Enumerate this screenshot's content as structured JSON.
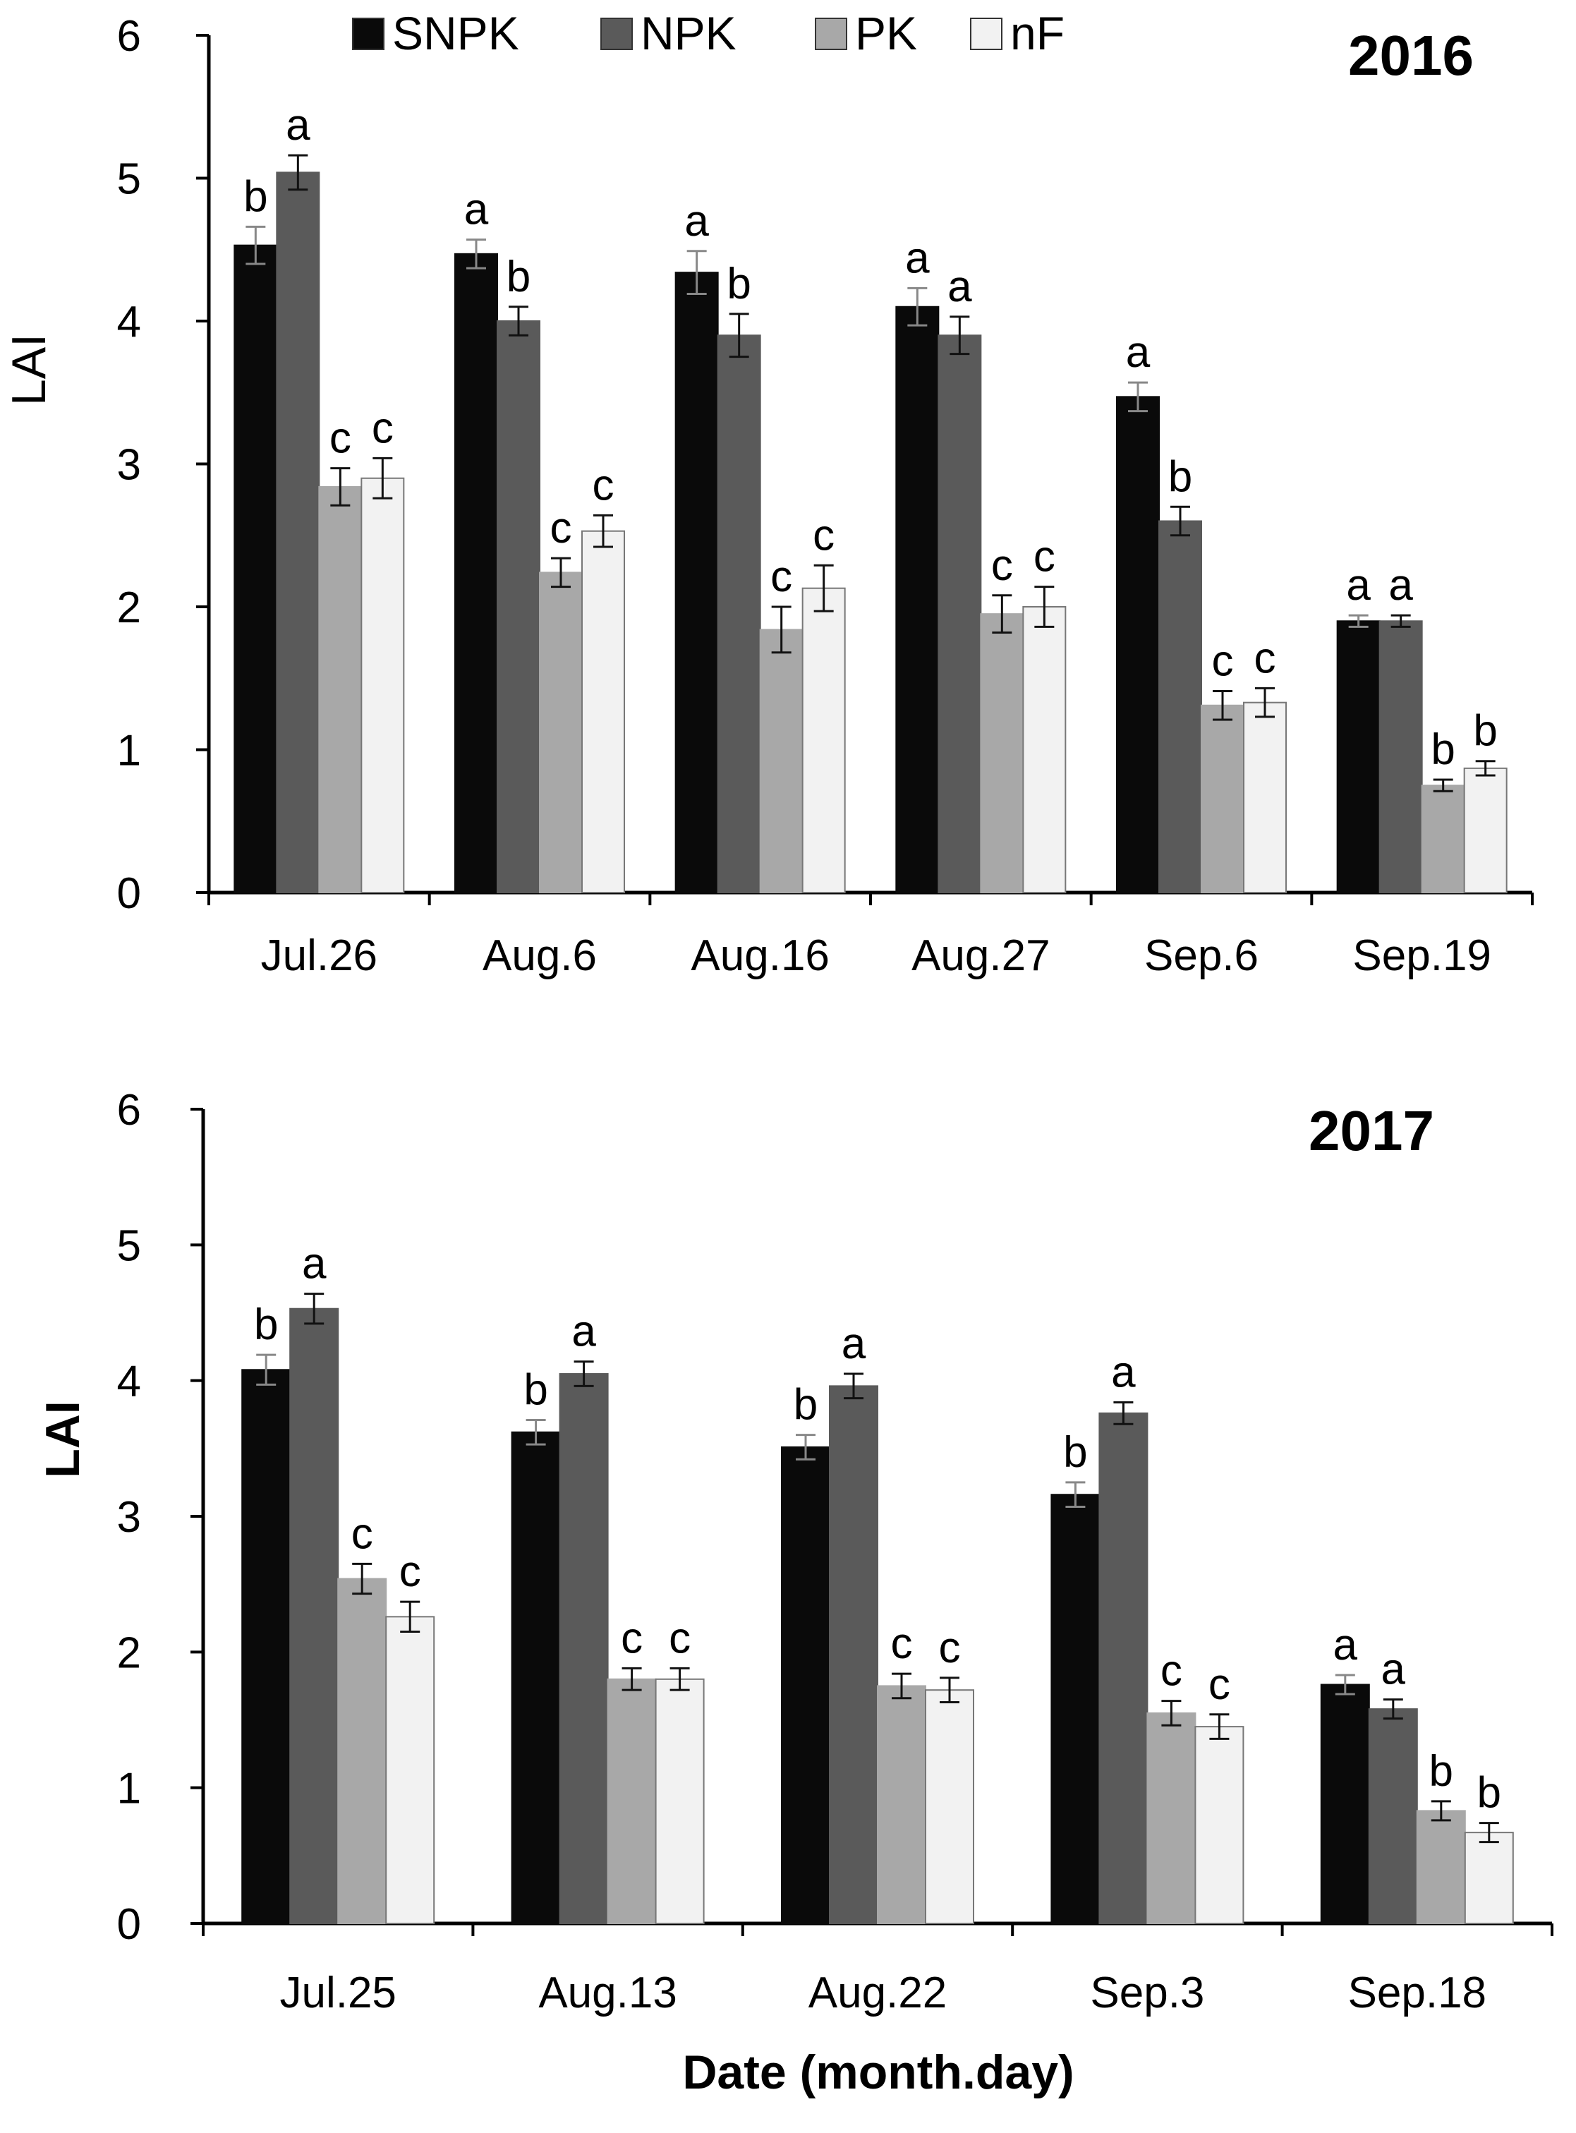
{
  "legend": [
    {
      "name": "SNPK",
      "color": "#0a0a0a"
    },
    {
      "name": "NPK",
      "color": "#5a5a5a"
    },
    {
      "name": "PK",
      "color": "#a8a8a8"
    },
    {
      "name": "nF",
      "color": "#f2f2f2"
    }
  ],
  "x_axis_title": "Date (month.day)",
  "chart_data": [
    {
      "type": "bar",
      "title": "2016",
      "ylabel": "LAI",
      "ylim": [
        0,
        6
      ],
      "yticks": [
        0,
        1,
        2,
        3,
        4,
        5,
        6
      ],
      "categories": [
        "Jul.26",
        "Aug.6",
        "Aug.16",
        "Aug.27",
        "Sep.6",
        "Sep.19"
      ],
      "series": [
        {
          "name": "SNPK",
          "values": [
            4.53,
            4.47,
            4.34,
            4.1,
            3.47,
            1.9
          ],
          "errors": [
            0.13,
            0.1,
            0.15,
            0.13,
            0.1,
            0.04
          ],
          "labels": [
            "b",
            "a",
            "a",
            "a",
            "a",
            "a"
          ]
        },
        {
          "name": "NPK",
          "values": [
            5.04,
            4.0,
            3.9,
            3.9,
            2.6,
            1.9
          ],
          "errors": [
            0.12,
            0.1,
            0.15,
            0.13,
            0.1,
            0.04
          ],
          "labels": [
            "a",
            "b",
            "b",
            "a",
            "b",
            "a"
          ]
        },
        {
          "name": "PK",
          "values": [
            2.84,
            2.24,
            1.84,
            1.95,
            1.31,
            0.75
          ],
          "errors": [
            0.13,
            0.1,
            0.16,
            0.13,
            0.1,
            0.04
          ],
          "labels": [
            "c",
            "c",
            "c",
            "c",
            "c",
            "b"
          ]
        },
        {
          "name": "nF",
          "values": [
            2.9,
            2.53,
            2.13,
            2.0,
            1.33,
            0.87
          ],
          "errors": [
            0.14,
            0.11,
            0.16,
            0.14,
            0.1,
            0.05
          ],
          "labels": [
            "c",
            "c",
            "c",
            "c",
            "c",
            "b"
          ]
        }
      ]
    },
    {
      "type": "bar",
      "title": "2017",
      "ylabel": "LAI",
      "ylim": [
        0,
        6
      ],
      "yticks": [
        0,
        1,
        2,
        3,
        4,
        5,
        6
      ],
      "categories": [
        "Jul.25",
        "Aug.13",
        "Aug.22",
        "Sep.3",
        "Sep.18"
      ],
      "series": [
        {
          "name": "SNPK",
          "values": [
            4.08,
            3.62,
            3.51,
            3.16,
            1.76
          ],
          "errors": [
            0.11,
            0.09,
            0.09,
            0.09,
            0.07
          ],
          "labels": [
            "b",
            "b",
            "b",
            "b",
            "a"
          ]
        },
        {
          "name": "NPK",
          "values": [
            4.53,
            4.05,
            3.96,
            3.76,
            1.58
          ],
          "errors": [
            0.11,
            0.09,
            0.09,
            0.08,
            0.07
          ],
          "labels": [
            "a",
            "a",
            "a",
            "a",
            "a"
          ]
        },
        {
          "name": "PK",
          "values": [
            2.54,
            1.8,
            1.75,
            1.55,
            0.83
          ],
          "errors": [
            0.11,
            0.08,
            0.09,
            0.09,
            0.07
          ],
          "labels": [
            "c",
            "c",
            "c",
            "c",
            "b"
          ]
        },
        {
          "name": "nF",
          "values": [
            2.26,
            1.8,
            1.72,
            1.45,
            0.67
          ],
          "errors": [
            0.11,
            0.08,
            0.09,
            0.09,
            0.07
          ],
          "labels": [
            "c",
            "c",
            "c",
            "c",
            "b"
          ]
        }
      ]
    }
  ]
}
